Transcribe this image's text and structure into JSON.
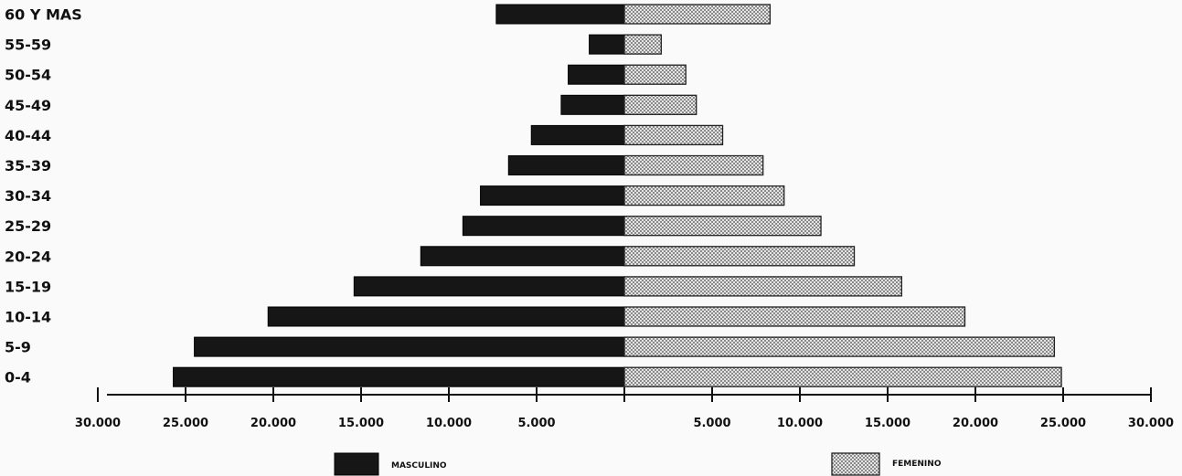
{
  "chart_data": {
    "type": "bar",
    "orientation": "horizontal",
    "subtype": "population-pyramid",
    "categories": [
      "60 Y MAS",
      "55-59",
      "50-54",
      "45-49",
      "40-44",
      "35-39",
      "30-34",
      "25-29",
      "20-24",
      "15-19",
      "10-14",
      "5-9",
      "0-4"
    ],
    "series": [
      {
        "name": "MASCULINO",
        "color": "#161616",
        "side": "left",
        "values": [
          7300,
          2000,
          3200,
          3600,
          5300,
          6600,
          8200,
          9200,
          11600,
          15400,
          20300,
          24500,
          25700
        ]
      },
      {
        "name": "FEMENINO",
        "color": "#c8c8c8",
        "pattern": "checkered",
        "side": "right",
        "values": [
          8300,
          2100,
          3500,
          4100,
          5600,
          7900,
          9100,
          11200,
          13100,
          15800,
          19400,
          24500,
          24900
        ]
      }
    ],
    "xlim": [
      -30000,
      30000
    ],
    "x_ticks": [
      {
        "value": -30000,
        "label": "30.000"
      },
      {
        "value": -25000,
        "label": "25.000"
      },
      {
        "value": -20000,
        "label": "20.000"
      },
      {
        "value": -15000,
        "label": "15.000"
      },
      {
        "value": -10000,
        "label": "10.000"
      },
      {
        "value": -5000,
        "label": "5.000"
      },
      {
        "value": 5000,
        "label": "5.000"
      },
      {
        "value": 10000,
        "label": "10.000"
      },
      {
        "value": 15000,
        "label": "15.000"
      },
      {
        "value": 20000,
        "label": "20.000"
      },
      {
        "value": 25000,
        "label": "25.000"
      },
      {
        "value": 30000,
        "label": "30.000"
      }
    ],
    "legend": {
      "position": "bottom"
    },
    "grid": false
  }
}
